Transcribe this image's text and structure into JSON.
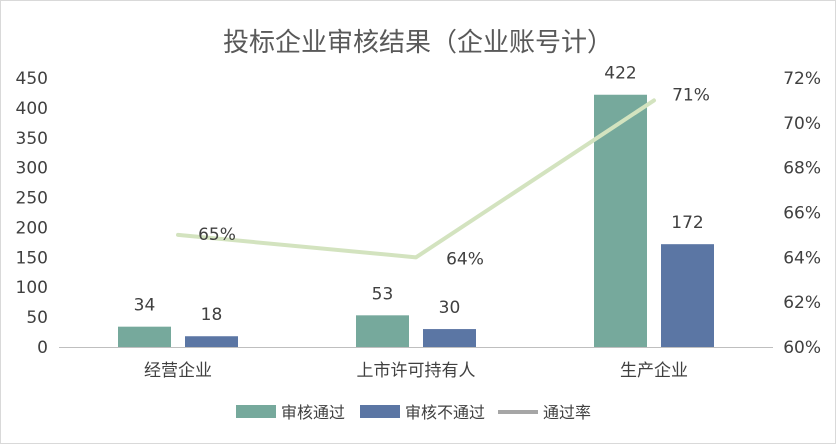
{
  "chart_data": {
    "type": "bar",
    "title": "投标企业审核结果（企业账号计）",
    "categories": [
      "经营企业",
      "上市许可持有人",
      "生产企业"
    ],
    "series": [
      {
        "name": "审核通过",
        "kind": "bar",
        "axis": "left",
        "color": "#76a99c",
        "values": [
          34,
          53,
          422
        ]
      },
      {
        "name": "审核不通过",
        "kind": "bar",
        "axis": "left",
        "color": "#5b76a4",
        "values": [
          18,
          30,
          172
        ]
      },
      {
        "name": "通过率",
        "kind": "line",
        "axis": "right",
        "color": "#d3e3bf",
        "values": [
          65,
          64,
          71
        ],
        "labels": [
          "65%",
          "64%",
          "71%"
        ]
      }
    ],
    "y_left": {
      "min": 0,
      "max": 450,
      "step": 50,
      "ticks": [
        "0",
        "50",
        "100",
        "150",
        "200",
        "250",
        "300",
        "350",
        "400",
        "450"
      ]
    },
    "y_right": {
      "min": 60,
      "max": 72,
      "step": 2,
      "ticks": [
        "60%",
        "62%",
        "64%",
        "66%",
        "68%",
        "70%",
        "72%"
      ]
    },
    "grid": false,
    "legend_position": "bottom"
  }
}
